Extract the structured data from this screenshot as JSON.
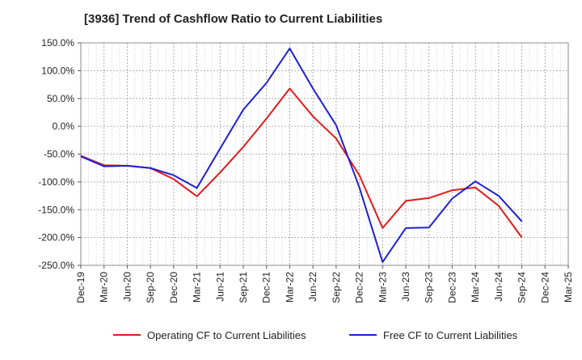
{
  "chart_data": {
    "type": "line",
    "title": "[3936]  Trend of Cashflow Ratio to Current Liabilities",
    "xlabel": "",
    "ylabel": "",
    "x": [
      "Dec-19",
      "Mar-20",
      "Jun-20",
      "Sep-20",
      "Dec-20",
      "Mar-21",
      "Jun-21",
      "Sep-21",
      "Dec-21",
      "Mar-22",
      "Jun-22",
      "Sep-22",
      "Dec-22",
      "Mar-23",
      "Jun-23",
      "Sep-23",
      "Dec-23",
      "Mar-24",
      "Jun-24",
      "Sep-24",
      "Dec-24",
      "Mar-25"
    ],
    "ylim": [
      -250,
      150
    ],
    "y_ticks": [
      150,
      100,
      50,
      0,
      -50,
      -100,
      -150,
      -200,
      -250
    ],
    "y_tick_labels": [
      "150.0%",
      "100.0%",
      "50.0%",
      "0.0%",
      "-50.0%",
      "-100.0%",
      "-150.0%",
      "-200.0%",
      "-250.0%"
    ],
    "grid": true,
    "legend_position": "bottom",
    "series": [
      {
        "name": "Operating CF to Current Liabilities",
        "color": "#e41a1c",
        "values": [
          -53,
          -70,
          -71,
          -75,
          -95,
          -126,
          -83,
          -37,
          14,
          68,
          18,
          -22,
          -88,
          -183,
          -134,
          -129,
          -115,
          -110,
          -143,
          -200,
          null,
          null
        ]
      },
      {
        "name": "Free CF to Current Liabilities",
        "color": "#1f1fd6",
        "values": [
          -54,
          -72,
          -71,
          -75,
          -88,
          -111,
          -40,
          30,
          78,
          140,
          68,
          2,
          -110,
          -244,
          -183,
          -182,
          -130,
          -99,
          -125,
          -171,
          null,
          null
        ]
      }
    ]
  }
}
